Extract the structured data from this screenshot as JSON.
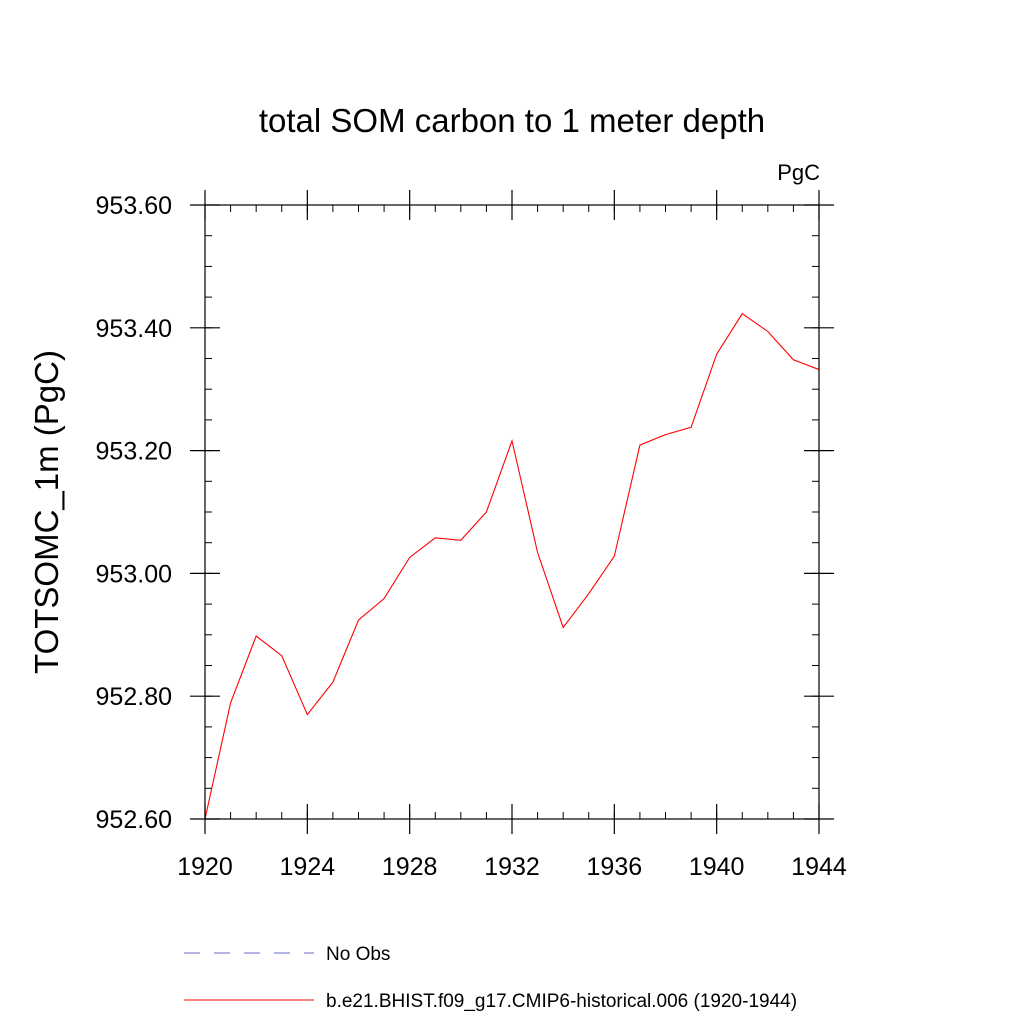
{
  "chart_data": {
    "type": "line",
    "title": "total SOM carbon to 1 meter depth",
    "units_label": "PgC",
    "xlabel": "",
    "ylabel": "TOTSOMC_1m  (PgC)",
    "xlim": [
      1920,
      1944
    ],
    "ylim": [
      952.6,
      953.6
    ],
    "x_ticks": [
      1920,
      1924,
      1928,
      1932,
      1936,
      1940,
      1944
    ],
    "y_ticks": [
      952.6,
      952.8,
      953.0,
      953.2,
      953.4,
      953.6
    ],
    "y_tick_labels": [
      "952.60",
      "952.80",
      "953.00",
      "953.20",
      "953.40",
      "953.60"
    ],
    "x_minor_step": 1,
    "y_minor_step": 0.05,
    "grid": false,
    "legend_placement": "bottom",
    "series": [
      {
        "name": "b.e21.BHIST.f09_g17.CMIP6-historical.006 (1920-1944)",
        "color": "#ff0000",
        "style": "solid",
        "x": [
          1920,
          1921,
          1922,
          1923,
          1924,
          1925,
          1926,
          1927,
          1928,
          1929,
          1930,
          1931,
          1932,
          1933,
          1934,
          1935,
          1936,
          1937,
          1938,
          1939,
          1940,
          1941,
          1942,
          1943,
          1944
        ],
        "y": [
          952.6,
          952.789,
          952.898,
          952.866,
          952.77,
          952.823,
          952.924,
          952.959,
          953.026,
          953.058,
          953.054,
          953.1,
          953.216,
          953.034,
          952.912,
          952.967,
          953.028,
          953.209,
          953.226,
          953.238,
          953.357,
          953.423,
          953.394,
          953.348,
          953.332
        ]
      }
    ],
    "legend": [
      {
        "label": "No Obs",
        "color": "#6a6acd",
        "style": "dashed"
      },
      {
        "label": "b.e21.BHIST.f09_g17.CMIP6-historical.006 (1920-1944)",
        "color": "#ff0000",
        "style": "solid"
      }
    ]
  }
}
